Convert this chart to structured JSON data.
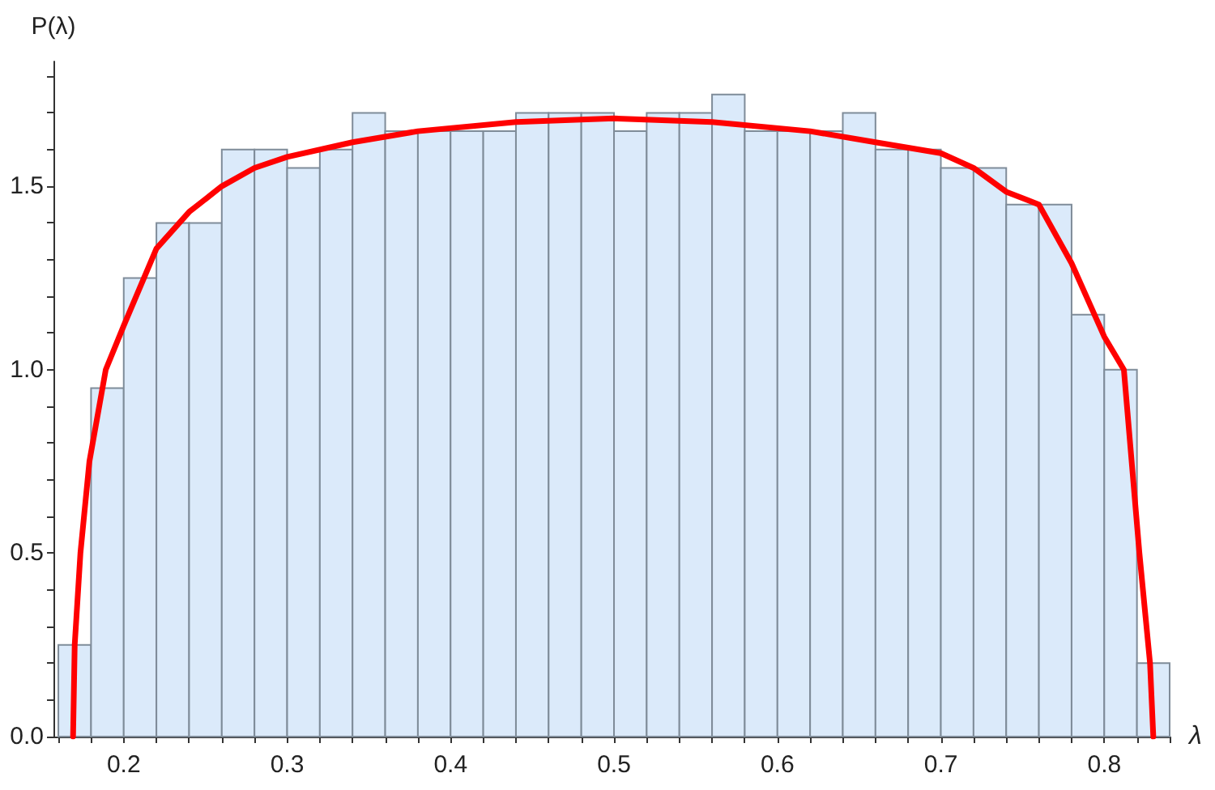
{
  "chart_data": {
    "type": "histogram",
    "xlabel": "λ",
    "ylabel": "P(λ)",
    "bins": [
      0.16,
      0.18,
      0.2,
      0.22,
      0.24,
      0.26,
      0.28,
      0.3,
      0.32,
      0.34,
      0.36,
      0.38,
      0.4,
      0.42,
      0.44,
      0.46,
      0.48,
      0.5,
      0.52,
      0.54,
      0.56,
      0.58,
      0.6,
      0.62,
      0.64,
      0.66,
      0.68,
      0.7,
      0.72,
      0.74,
      0.76,
      0.78,
      0.8,
      0.82,
      0.84
    ],
    "series": [
      {
        "color": "#dbeafa",
        "values": [
          0.25,
          0.95,
          1.25,
          1.4,
          1.4,
          1.6,
          1.6,
          1.55,
          1.6,
          1.7,
          1.65,
          1.65,
          1.65,
          1.65,
          1.7,
          1.7,
          1.7,
          1.65,
          1.7,
          1.7,
          1.75,
          1.65,
          1.65,
          1.65,
          1.7,
          1.6,
          1.6,
          1.55,
          1.55,
          1.45,
          1.45,
          1.15,
          1.0,
          0.2
        ]
      },
      {
        "type": "line",
        "color": "#ff0000",
        "x": [
          0.169,
          0.17,
          0.1735,
          0.179,
          0.189,
          0.2,
          0.22,
          0.24,
          0.26,
          0.28,
          0.3,
          0.34,
          0.38,
          0.44,
          0.5,
          0.56,
          0.62,
          0.66,
          0.7,
          0.72,
          0.74,
          0.76,
          0.78,
          0.8,
          0.812,
          0.8215,
          0.828,
          0.83
        ],
        "values": [
          0,
          0.25,
          0.5,
          0.75,
          1.0,
          1.12,
          1.33,
          1.43,
          1.5,
          1.55,
          1.58,
          1.62,
          1.65,
          1.675,
          1.685,
          1.675,
          1.65,
          1.62,
          1.59,
          1.55,
          1.485,
          1.45,
          1.29,
          1.09,
          1.0,
          0.5,
          0.2,
          0
        ]
      }
    ],
    "xlim": [
      0.157,
      0.84
    ],
    "xticks": [
      {
        "value": 0.16,
        "label": null
      },
      {
        "value": 0.18,
        "label": null
      },
      0.2,
      {
        "value": 0.22,
        "label": null
      },
      {
        "value": 0.24,
        "label": null
      },
      {
        "value": 0.26,
        "label": null
      },
      {
        "value": 0.28,
        "label": null
      },
      0.3,
      {
        "value": 0.32,
        "label": null
      },
      {
        "value": 0.34,
        "label": null
      },
      {
        "value": 0.36,
        "label": null
      },
      {
        "value": 0.38,
        "label": null
      },
      0.4,
      {
        "value": 0.42,
        "label": null
      },
      {
        "value": 0.44,
        "label": null
      },
      {
        "value": 0.46,
        "label": null
      },
      {
        "value": 0.48,
        "label": null
      },
      0.5,
      {
        "value": 0.52,
        "label": null
      },
      {
        "value": 0.54,
        "label": null
      },
      {
        "value": 0.56,
        "label": null
      },
      {
        "value": 0.58,
        "label": null
      },
      0.6,
      {
        "value": 0.62,
        "label": null
      },
      {
        "value": 0.64,
        "label": null
      },
      {
        "value": 0.66,
        "label": null
      },
      {
        "value": 0.68,
        "label": null
      },
      0.7,
      {
        "value": 0.72,
        "label": null
      },
      {
        "value": 0.74,
        "label": null
      },
      {
        "value": 0.76,
        "label": null
      },
      {
        "value": 0.78,
        "label": null
      },
      0.8,
      {
        "value": 0.82,
        "label": null
      },
      {
        "value": 0.84,
        "label": null
      }
    ],
    "ylim": [
      0,
      1.84
    ],
    "yticks": [
      {
        "value": 0,
        "label": "0.0"
      },
      {
        "value": 0.1,
        "label": null
      },
      {
        "value": 0.2,
        "label": null
      },
      {
        "value": 0.3,
        "label": null
      },
      {
        "value": 0.4,
        "label": null
      },
      0.5,
      {
        "value": 0.6,
        "label": null
      },
      {
        "value": 0.7,
        "label": null
      },
      {
        "value": 0.8,
        "label": null
      },
      {
        "value": 0.9,
        "label": null
      },
      {
        "value": 1.0,
        "label": "1.0"
      },
      {
        "value": 1.1,
        "label": null
      },
      {
        "value": 1.2,
        "label": null
      },
      {
        "value": 1.3,
        "label": null
      },
      {
        "value": 1.4,
        "label": null
      },
      1.5,
      {
        "value": 1.6,
        "label": null
      },
      {
        "value": 1.7,
        "label": null
      },
      {
        "value": 1.8,
        "label": null
      }
    ],
    "grid": false
  }
}
